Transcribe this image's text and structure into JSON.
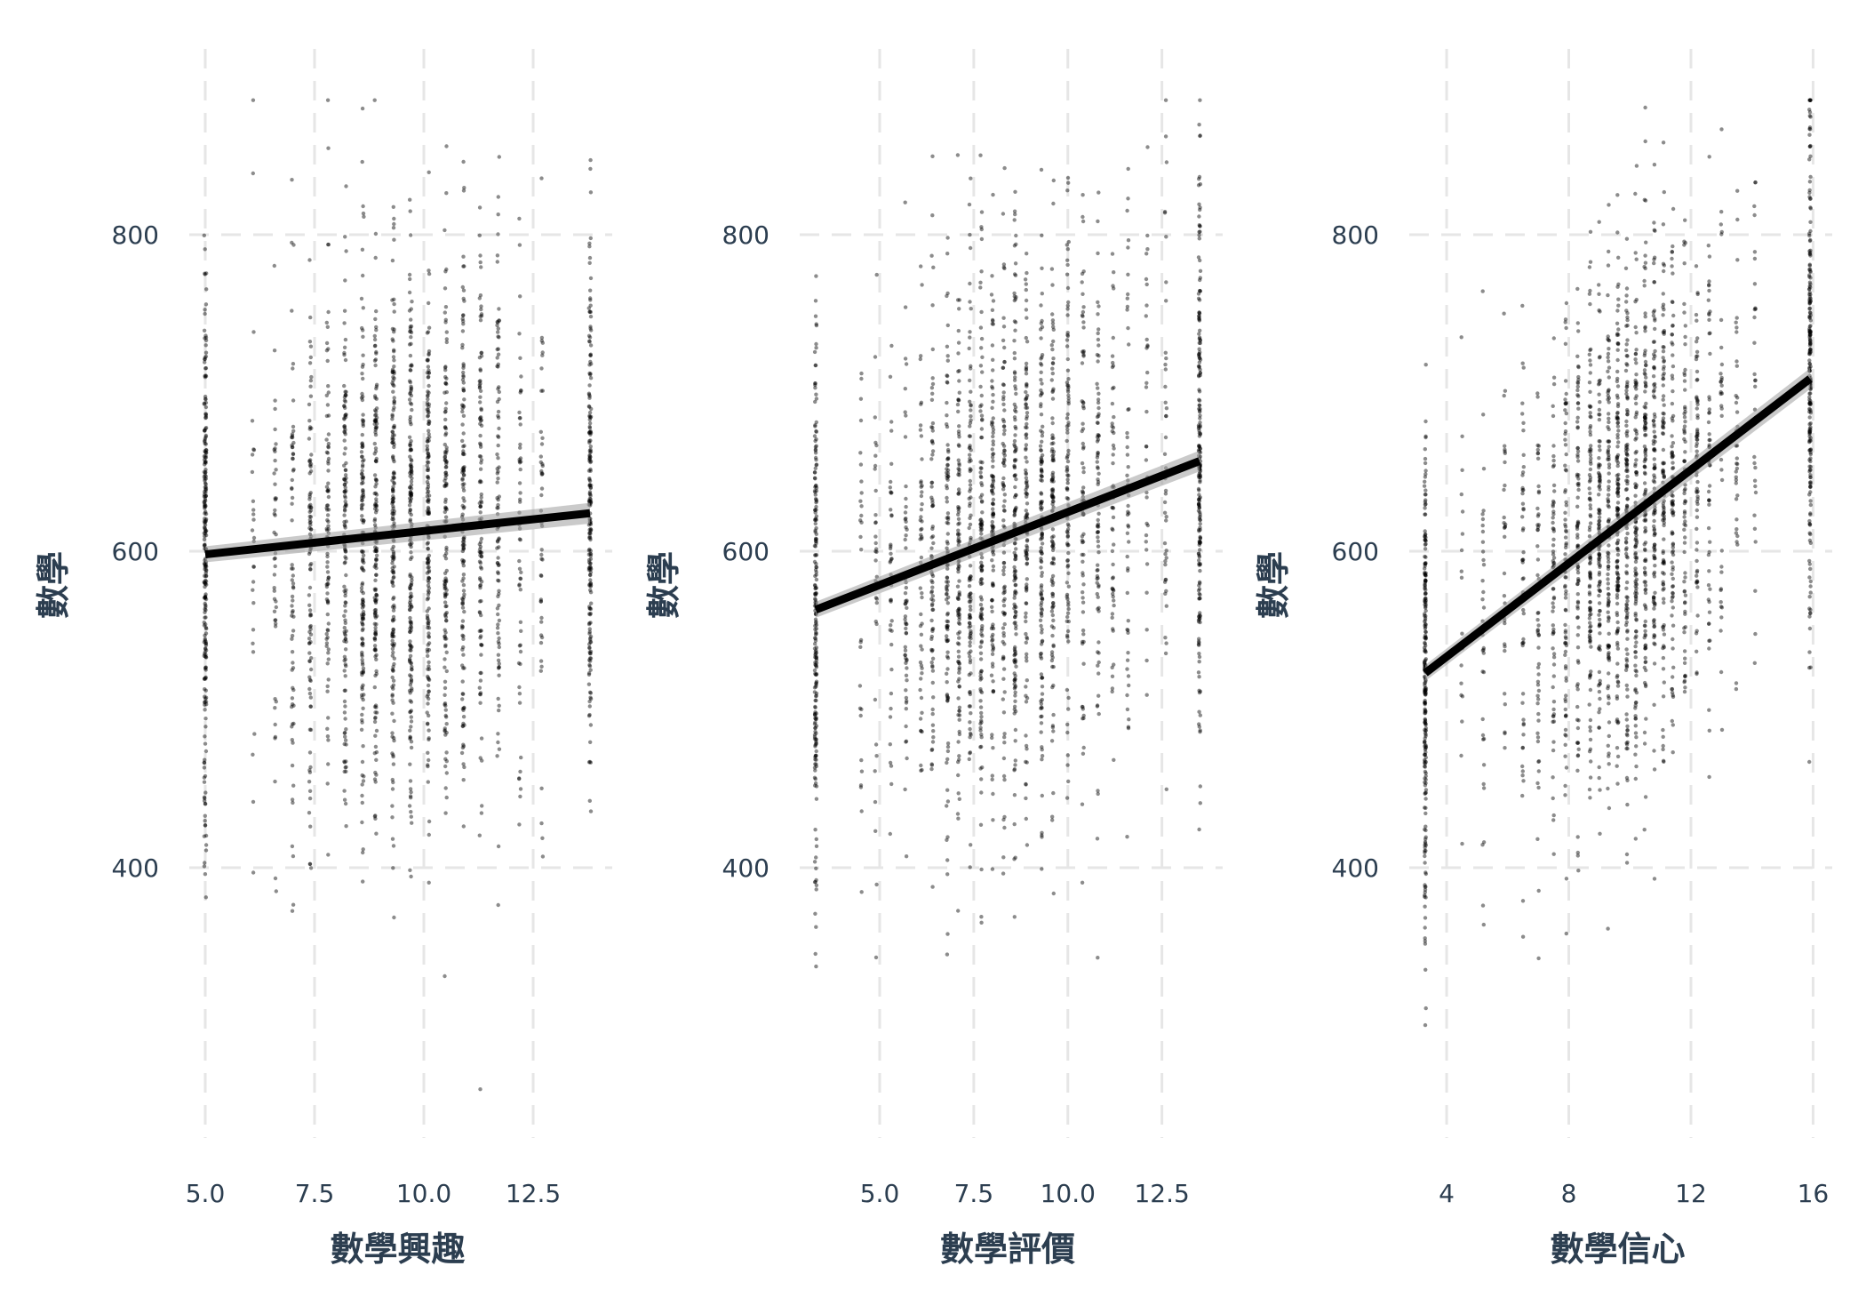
{
  "chart_data": [
    {
      "type": "scatter",
      "xlabel": "數學興趣",
      "ylabel": "數學",
      "xlim": [
        5.0,
        13.8
      ],
      "ylim": [
        240,
        895
      ],
      "x_ticks": [
        "5.0",
        "7.5",
        "10.0",
        "12.5"
      ],
      "x_tick_values": [
        5.0,
        7.5,
        10.0,
        12.5
      ],
      "y_ticks": [
        "400",
        "600",
        "800"
      ],
      "y_tick_values": [
        400,
        600,
        800
      ],
      "x_levels": [
        5.0,
        6.1,
        6.6,
        7.0,
        7.4,
        7.8,
        8.2,
        8.6,
        8.9,
        9.3,
        9.7,
        10.1,
        10.5,
        10.9,
        11.3,
        11.7,
        12.2,
        12.7,
        13.8
      ],
      "fit_line": {
        "x": [
          5.0,
          13.8
        ],
        "y": [
          598,
          624
        ]
      },
      "point_cloud": {
        "y_center": 610,
        "y_spread": 85,
        "approx_points": 2400
      },
      "grid": true,
      "legend": "none"
    },
    {
      "type": "scatter",
      "xlabel": "數學評價",
      "ylabel": "數學",
      "xlim": [
        3.3,
        13.5
      ],
      "ylim": [
        240,
        895
      ],
      "x_ticks": [
        "5.0",
        "7.5",
        "10.0",
        "12.5"
      ],
      "x_tick_values": [
        5.0,
        7.5,
        10.0,
        12.5
      ],
      "y_ticks": [
        "400",
        "600",
        "800"
      ],
      "y_tick_values": [
        400,
        600,
        800
      ],
      "x_levels": [
        3.3,
        4.5,
        4.9,
        5.3,
        5.7,
        6.1,
        6.4,
        6.8,
        7.1,
        7.4,
        7.7,
        8.0,
        8.3,
        8.6,
        8.9,
        9.3,
        9.6,
        10.0,
        10.4,
        10.8,
        11.2,
        11.6,
        12.1,
        12.6,
        13.5
      ],
      "fit_line": {
        "x": [
          3.3,
          13.5
        ],
        "y": [
          563,
          657
        ]
      },
      "point_cloud": {
        "y_center": 610,
        "y_spread": 85,
        "approx_points": 2400
      },
      "grid": true,
      "legend": "none"
    },
    {
      "type": "scatter",
      "xlabel": "數學信心",
      "ylabel": "數學",
      "xlim": [
        3.3,
        15.9
      ],
      "ylim": [
        240,
        895
      ],
      "x_ticks": [
        "4",
        "8",
        "12",
        "16"
      ],
      "x_tick_values": [
        4,
        8,
        12,
        16
      ],
      "y_ticks": [
        "400",
        "600",
        "800"
      ],
      "y_tick_values": [
        400,
        600,
        800
      ],
      "x_levels": [
        3.3,
        4.5,
        5.2,
        5.9,
        6.5,
        7.0,
        7.5,
        7.9,
        8.3,
        8.7,
        9.0,
        9.3,
        9.6,
        9.9,
        10.2,
        10.5,
        10.8,
        11.1,
        11.4,
        11.8,
        12.2,
        12.6,
        13.0,
        13.5,
        14.1,
        15.9
      ],
      "fit_line": {
        "x": [
          3.3,
          15.9
        ],
        "y": [
          523,
          709
        ]
      },
      "point_cloud": {
        "y_center": 610,
        "y_spread": 80,
        "approx_points": 2400
      },
      "grid": true,
      "legend": "none"
    }
  ]
}
